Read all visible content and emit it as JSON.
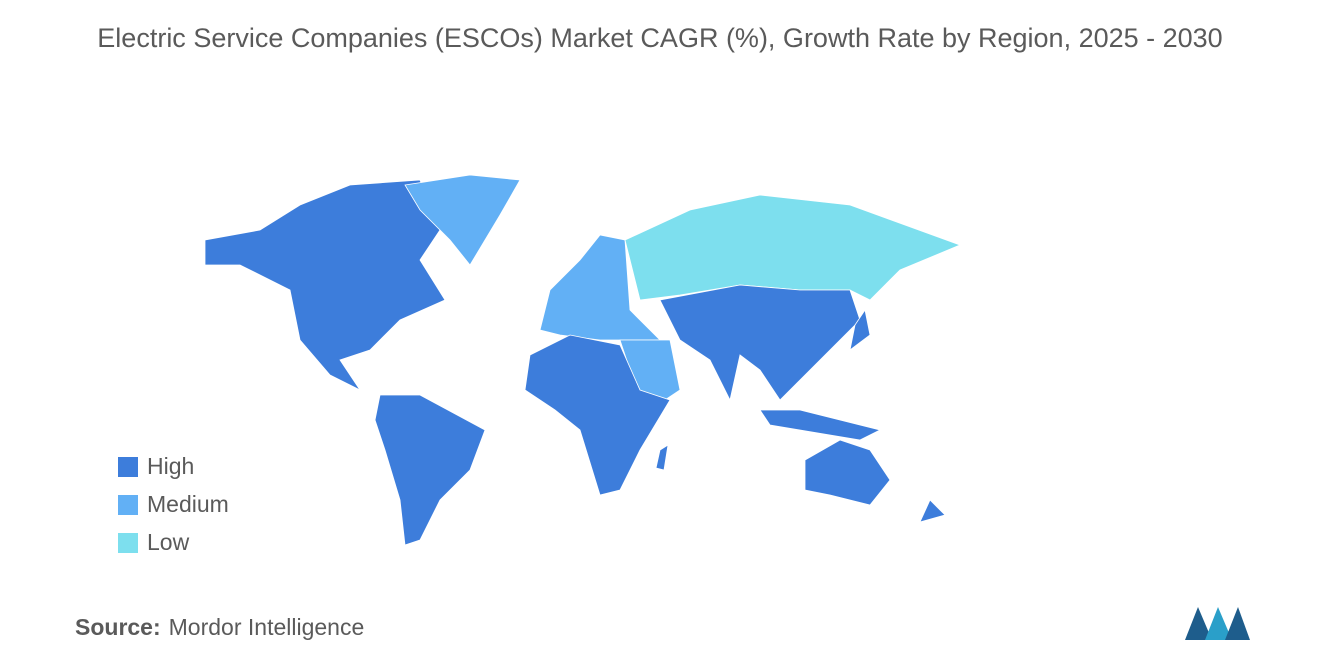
{
  "title": "Electric Service Companies (ESCOs) Market CAGR (%), Growth Rate by Region, 2025 - 2030",
  "legend": {
    "items": [
      {
        "label": "High",
        "color": "#3d7ddb"
      },
      {
        "label": "Medium",
        "color": "#62b0f5"
      },
      {
        "label": "Low",
        "color": "#7ddfee"
      }
    ]
  },
  "source": {
    "label": "Source:",
    "text": "Mordor Intelligence"
  }
}
